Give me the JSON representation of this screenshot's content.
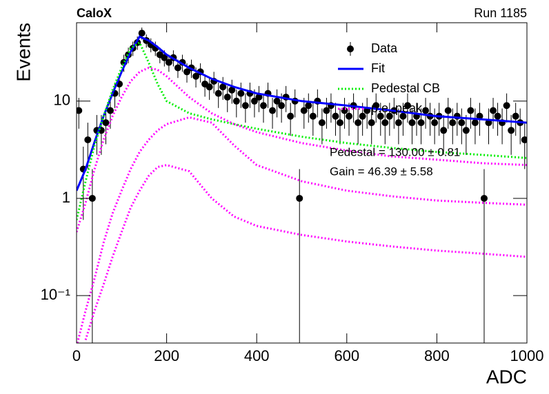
{
  "chart_data": {
    "type": "scatter",
    "title": "CaloX",
    "subtitle": "Run 1185",
    "xlabel": "ADC",
    "ylabel": "Events",
    "xlim": [
      0,
      1000
    ],
    "ylim": [
      0.0325,
      64
    ],
    "log_y": true,
    "xticks": [
      0,
      200,
      400,
      600,
      800,
      1000
    ],
    "yticks": [
      {
        "value": 0.1,
        "label": "10⁻¹"
      },
      1,
      10
    ],
    "legend": "upper right",
    "annotations": [
      "Pedestal = 130.00 ± 0.81",
      "Gain = 46.39 ± 5.58"
    ],
    "series": [
      {
        "name": "Data",
        "color": "#000000",
        "kind": "points",
        "x": [
          5,
          15,
          25,
          35,
          45,
          55,
          65,
          75,
          85,
          95,
          105,
          115,
          125,
          135,
          145,
          155,
          165,
          175,
          185,
          195,
          205,
          215,
          225,
          235,
          245,
          255,
          265,
          275,
          285,
          295,
          305,
          315,
          325,
          335,
          345,
          355,
          365,
          375,
          385,
          395,
          405,
          415,
          425,
          435,
          445,
          455,
          465,
          475,
          485,
          495,
          505,
          515,
          525,
          535,
          545,
          555,
          565,
          575,
          585,
          595,
          605,
          615,
          625,
          635,
          645,
          655,
          665,
          675,
          685,
          695,
          705,
          715,
          725,
          735,
          745,
          755,
          765,
          775,
          785,
          795,
          805,
          815,
          825,
          835,
          845,
          855,
          865,
          875,
          885,
          895,
          905,
          915,
          925,
          935,
          945,
          955,
          965,
          975,
          985,
          995
        ],
        "values": [
          8,
          2,
          4,
          1,
          5,
          5,
          6,
          8,
          12,
          15,
          25,
          30,
          35,
          40,
          50,
          42,
          38,
          35,
          30,
          28,
          25,
          28,
          22,
          25,
          20,
          22,
          18,
          20,
          15,
          14,
          16,
          12,
          14,
          11,
          13,
          10,
          12,
          9,
          12,
          10,
          11,
          9,
          12,
          8,
          10,
          9,
          11,
          7,
          10,
          1,
          8,
          9,
          7,
          10,
          6,
          8,
          9,
          7,
          6,
          8,
          7,
          9,
          6,
          7,
          8,
          6,
          9,
          7,
          6,
          7,
          8,
          6,
          7,
          9,
          6,
          7,
          6,
          8,
          7,
          6,
          7,
          5,
          8,
          6,
          7,
          6,
          5,
          8,
          6,
          7,
          1,
          6,
          8,
          7,
          6,
          9,
          5,
          7,
          6,
          4
        ],
        "errors": [
          2.8,
          1.4,
          2,
          1,
          2.2,
          2.2,
          2.4,
          2.8,
          3.5,
          3.9,
          5,
          5.5,
          5.9,
          6.3,
          7.1,
          6.5,
          6.2,
          5.9,
          5.5,
          5.3,
          5,
          5.3,
          4.7,
          5,
          4.5,
          4.7,
          4.2,
          4.5,
          3.9,
          3.7,
          4,
          3.5,
          3.7,
          3.3,
          3.6,
          3.2,
          3.5,
          3,
          3.5,
          3.2,
          3.3,
          3,
          3.5,
          2.8,
          3.2,
          3,
          3.3,
          2.6,
          3.2,
          1,
          2.8,
          3,
          2.6,
          3.2,
          2.4,
          2.8,
          3,
          2.6,
          2.4,
          2.8,
          2.6,
          3,
          2.4,
          2.6,
          2.8,
          2.4,
          3,
          2.6,
          2.4,
          2.6,
          2.8,
          2.4,
          2.6,
          3,
          2.4,
          2.6,
          2.4,
          2.8,
          2.6,
          2.4,
          2.6,
          2.2,
          2.8,
          2.4,
          2.6,
          2.4,
          2.2,
          2.8,
          2.4,
          2.6,
          1,
          2.4,
          2.8,
          2.6,
          2.4,
          3,
          2.2,
          2.6,
          2.4,
          2
        ]
      },
      {
        "name": "Fit",
        "color": "#0000ff",
        "kind": "line",
        "x": [
          0,
          20,
          40,
          60,
          80,
          100,
          120,
          140,
          160,
          180,
          200,
          250,
          300,
          350,
          400,
          500,
          600,
          700,
          800,
          900,
          1000
        ],
        "values": [
          1.2,
          2,
          3.8,
          7,
          12,
          20,
          32,
          46,
          42,
          36,
          30,
          22,
          17,
          14,
          12,
          10,
          9,
          8,
          7,
          6.5,
          6
        ]
      },
      {
        "name": "Pedestal CB",
        "color": "#00ee00",
        "kind": "dotted",
        "x": [
          0,
          20,
          40,
          60,
          80,
          100,
          120,
          140,
          160,
          180,
          200,
          250,
          300,
          350,
          400,
          500,
          600,
          700,
          800,
          900,
          1000
        ],
        "values": [
          0.6,
          1.5,
          3.5,
          7,
          13,
          22,
          35,
          40,
          25,
          15,
          10,
          7.5,
          6.5,
          5.8,
          5.2,
          4.3,
          3.7,
          3.3,
          3,
          2.8,
          2.6
        ]
      },
      {
        "name": "p.e. peak",
        "color": "#ff00ff",
        "kind": "dotted",
        "x": [
          0,
          20,
          40,
          60,
          80,
          100,
          120,
          140,
          160,
          180,
          200,
          250,
          300,
          350,
          400,
          500,
          600,
          700,
          800,
          900,
          1000
        ],
        "values": [
          0.45,
          0.9,
          2,
          4,
          7,
          11,
          16,
          20,
          22,
          21,
          18,
          11,
          7.5,
          5.8,
          4.8,
          3.7,
          3.1,
          2.7,
          2.5,
          2.3,
          2.2
        ]
      },
      {
        "color": "#ff00ff",
        "kind": "dotted",
        "x": [
          0,
          20,
          40,
          60,
          80,
          100,
          120,
          140,
          160,
          180,
          200,
          250,
          300,
          350,
          400,
          500,
          600,
          700,
          800,
          900,
          1000
        ],
        "values": [
          0.03,
          0.07,
          0.15,
          0.35,
          0.7,
          1.2,
          2,
          3,
          4,
          5,
          5.8,
          6.8,
          6,
          3.5,
          2.2,
          1.5,
          1.2,
          1.05,
          0.95,
          0.9,
          0.86
        ]
      },
      {
        "color": "#ff00ff",
        "kind": "dotted",
        "x": [
          0,
          20,
          40,
          60,
          80,
          100,
          120,
          140,
          160,
          180,
          200,
          250,
          300,
          350,
          400,
          500,
          600,
          700,
          800,
          900,
          1000
        ],
        "values": [
          null,
          0.035,
          0.07,
          0.13,
          0.25,
          0.45,
          0.8,
          1.2,
          1.7,
          2.1,
          2.2,
          1.9,
          1,
          0.65,
          0.52,
          0.42,
          0.36,
          0.32,
          0.29,
          0.27,
          0.25
        ]
      }
    ]
  }
}
